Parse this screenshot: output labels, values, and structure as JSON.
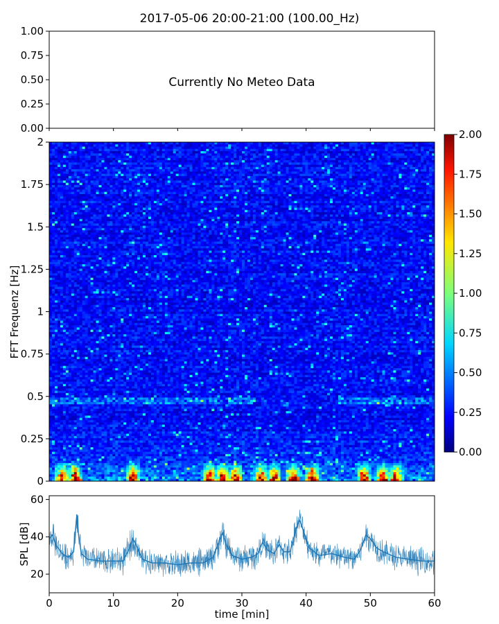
{
  "title": "2017-05-06 20:00-21:00 (100.00_Hz)",
  "chart_data": [
    {
      "type": "line",
      "panel": "meteo",
      "title": "",
      "annotation": "Currently No Meteo Data",
      "xlabel": "",
      "ylabel": "",
      "xlim": [
        0,
        60
      ],
      "ylim": [
        0,
        1
      ],
      "yticks": [
        "0.00",
        "0.25",
        "0.50",
        "0.75",
        "1.00"
      ],
      "series": []
    },
    {
      "type": "heatmap",
      "panel": "spectrogram",
      "title": "",
      "xlabel": "",
      "ylabel": "FFT Frequenz [Hz]",
      "xlim": [
        0,
        60
      ],
      "ylim": [
        0,
        2
      ],
      "yticks": [
        "0",
        "0.25",
        "0.5",
        "0.75",
        "1",
        "1.25",
        "1.5",
        "1.75",
        "2"
      ],
      "colormap": "jet",
      "color_range": [
        0,
        2
      ],
      "colorbar_ticks": [
        "0.00",
        "0.25",
        "0.50",
        "0.75",
        "1.00",
        "1.25",
        "1.50",
        "1.75",
        "2.00"
      ],
      "background_level": 0.22,
      "features": {
        "band_0_5Hz_level": 0.7,
        "low_freq_peaks_minutes": [
          2,
          4,
          13,
          25,
          27,
          29,
          33,
          35,
          38,
          41,
          49,
          52,
          54
        ],
        "low_freq_peak_level": 2.0
      }
    },
    {
      "type": "line",
      "panel": "spl",
      "title": "",
      "xlabel": "time [min]",
      "ylabel": "SPL [dB]",
      "xlim": [
        0,
        60
      ],
      "ylim": [
        10,
        62
      ],
      "xticks": [
        "0",
        "10",
        "20",
        "30",
        "40",
        "50",
        "60"
      ],
      "yticks": [
        "20",
        "40",
        "60"
      ],
      "color": "#1f77b4",
      "series": [
        {
          "x": [
            0,
            0.5,
            1,
            2,
            3,
            3.8,
            4.3,
            4.6,
            5,
            6,
            8,
            10,
            11.5,
            12.5,
            13,
            13.5,
            14.5,
            16,
            18,
            20,
            22,
            24,
            25.5,
            26.5,
            27,
            27.5,
            28.5,
            30,
            31.5,
            32.5,
            33.2,
            34,
            35,
            35.8,
            36.5,
            37.5,
            38.5,
            39,
            39.5,
            40.5,
            42,
            44,
            46,
            47.5,
            48.5,
            49.3,
            50,
            51,
            52,
            54,
            56,
            58,
            60
          ],
          "y": [
            39,
            41,
            36,
            31,
            29,
            32,
            52,
            40,
            31,
            28,
            27,
            27,
            27,
            34,
            39,
            36,
            28,
            26,
            26,
            25,
            26,
            26,
            29,
            38,
            42,
            36,
            30,
            28,
            29,
            31,
            37,
            33,
            31,
            36,
            32,
            32,
            45,
            49,
            44,
            34,
            30,
            31,
            29,
            28,
            33,
            41,
            39,
            34,
            32,
            29,
            28,
            27,
            27
          ]
        }
      ]
    }
  ]
}
